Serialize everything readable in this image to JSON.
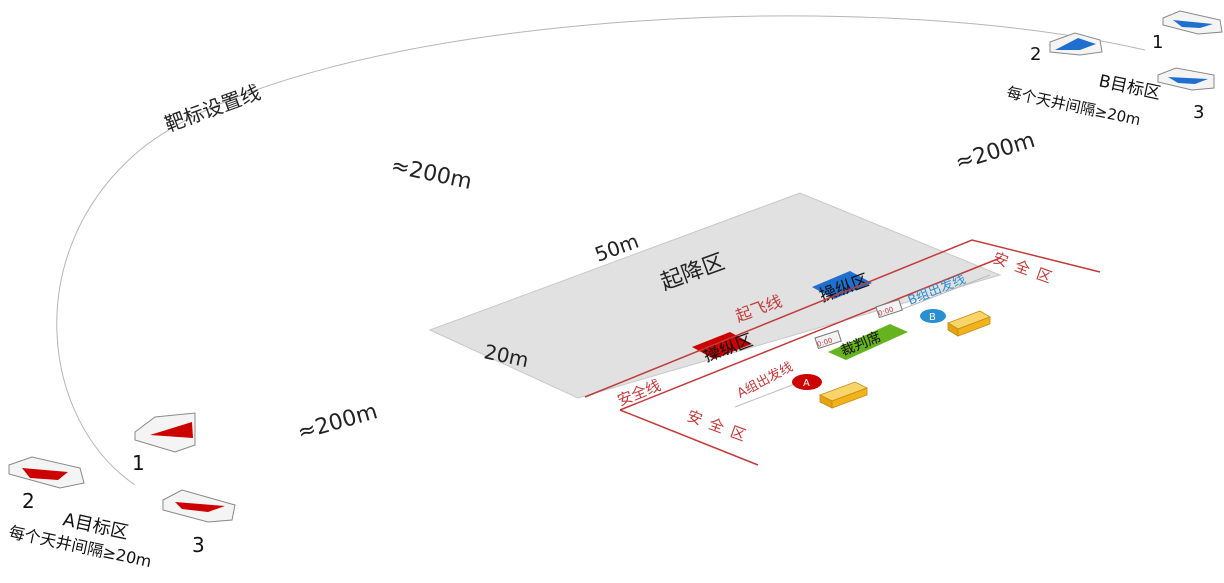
{
  "diagram": {
    "target_line_label": "靶标设置线",
    "distance_label": "≈200m",
    "landing_zone": {
      "label": "起降区",
      "length": "50m",
      "width": "20m"
    },
    "takeoff_line": "起飞线",
    "control_zone": "操纵区",
    "safety_line": "安全线",
    "safety_zone": "安全区",
    "judge_seat": "裁判席",
    "group_a_start": "A组出发线",
    "group_b_start": "B组出发线",
    "group_a_marker": "A",
    "group_b_marker": "B",
    "timer_text": "0:00",
    "target_zone_a": {
      "title": "A目标区",
      "note": "每个天井间隔≥20m",
      "numbers": [
        "1",
        "2",
        "3"
      ]
    },
    "target_zone_b": {
      "title": "B目标区",
      "note": "每个天井间隔≥20m",
      "numbers": [
        "1",
        "2",
        "3"
      ]
    },
    "colors": {
      "red": "#cc0000",
      "blue": "#1f6fcf",
      "green": "#66b320",
      "yellow": "#f2b21c",
      "gray": "#e1e1e1",
      "safety_red": "#c23a3a",
      "b_line_blue": "#2a8fd0"
    }
  }
}
